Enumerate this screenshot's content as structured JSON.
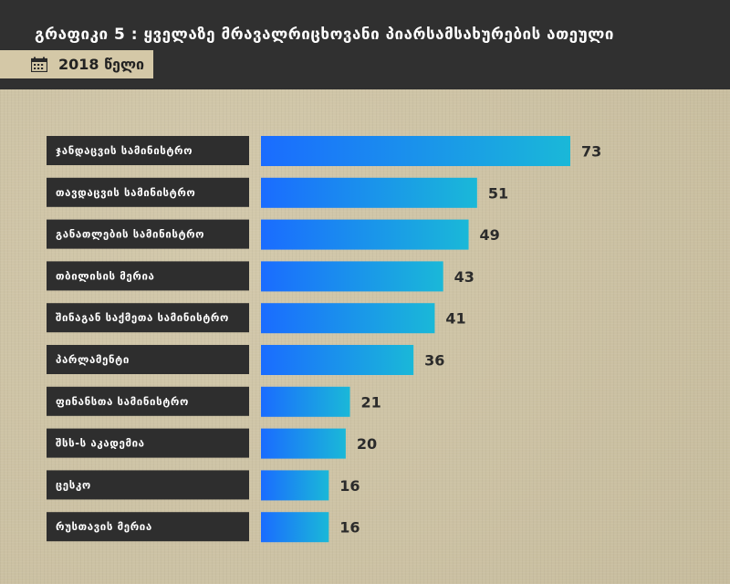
{
  "header": {
    "title": "გრაფიკი 5 : ყველაზე მრავალრიცხოვანი პიარსამსახურების ათეული",
    "year_label": "2018 წელი",
    "year_icon": "calendar-icon",
    "background_color": "#303030"
  },
  "chart_data": {
    "type": "bar",
    "orientation": "horizontal",
    "categories": [
      "ჯანდაცვის სამინისტრო",
      "თავდაცვის სამინისტრო",
      "განათლების სამინისტრო",
      "თბილისის მერია",
      "შინაგან საქმეთა სამინისტრო",
      "პარლამენტი",
      "ფინანსთა სამინისტრო",
      "შსს-ს აკადემია",
      "ცესკო",
      "რუსთავის მერია"
    ],
    "values": [
      73,
      51,
      49,
      43,
      41,
      36,
      21,
      20,
      16,
      16
    ],
    "bar_gradient": [
      "#1a6cff",
      "#1ab8d8"
    ],
    "label_box_color": "#2e2e2e",
    "value_label_color": "#2b2b2b",
    "grid": false,
    "legend": "none"
  }
}
